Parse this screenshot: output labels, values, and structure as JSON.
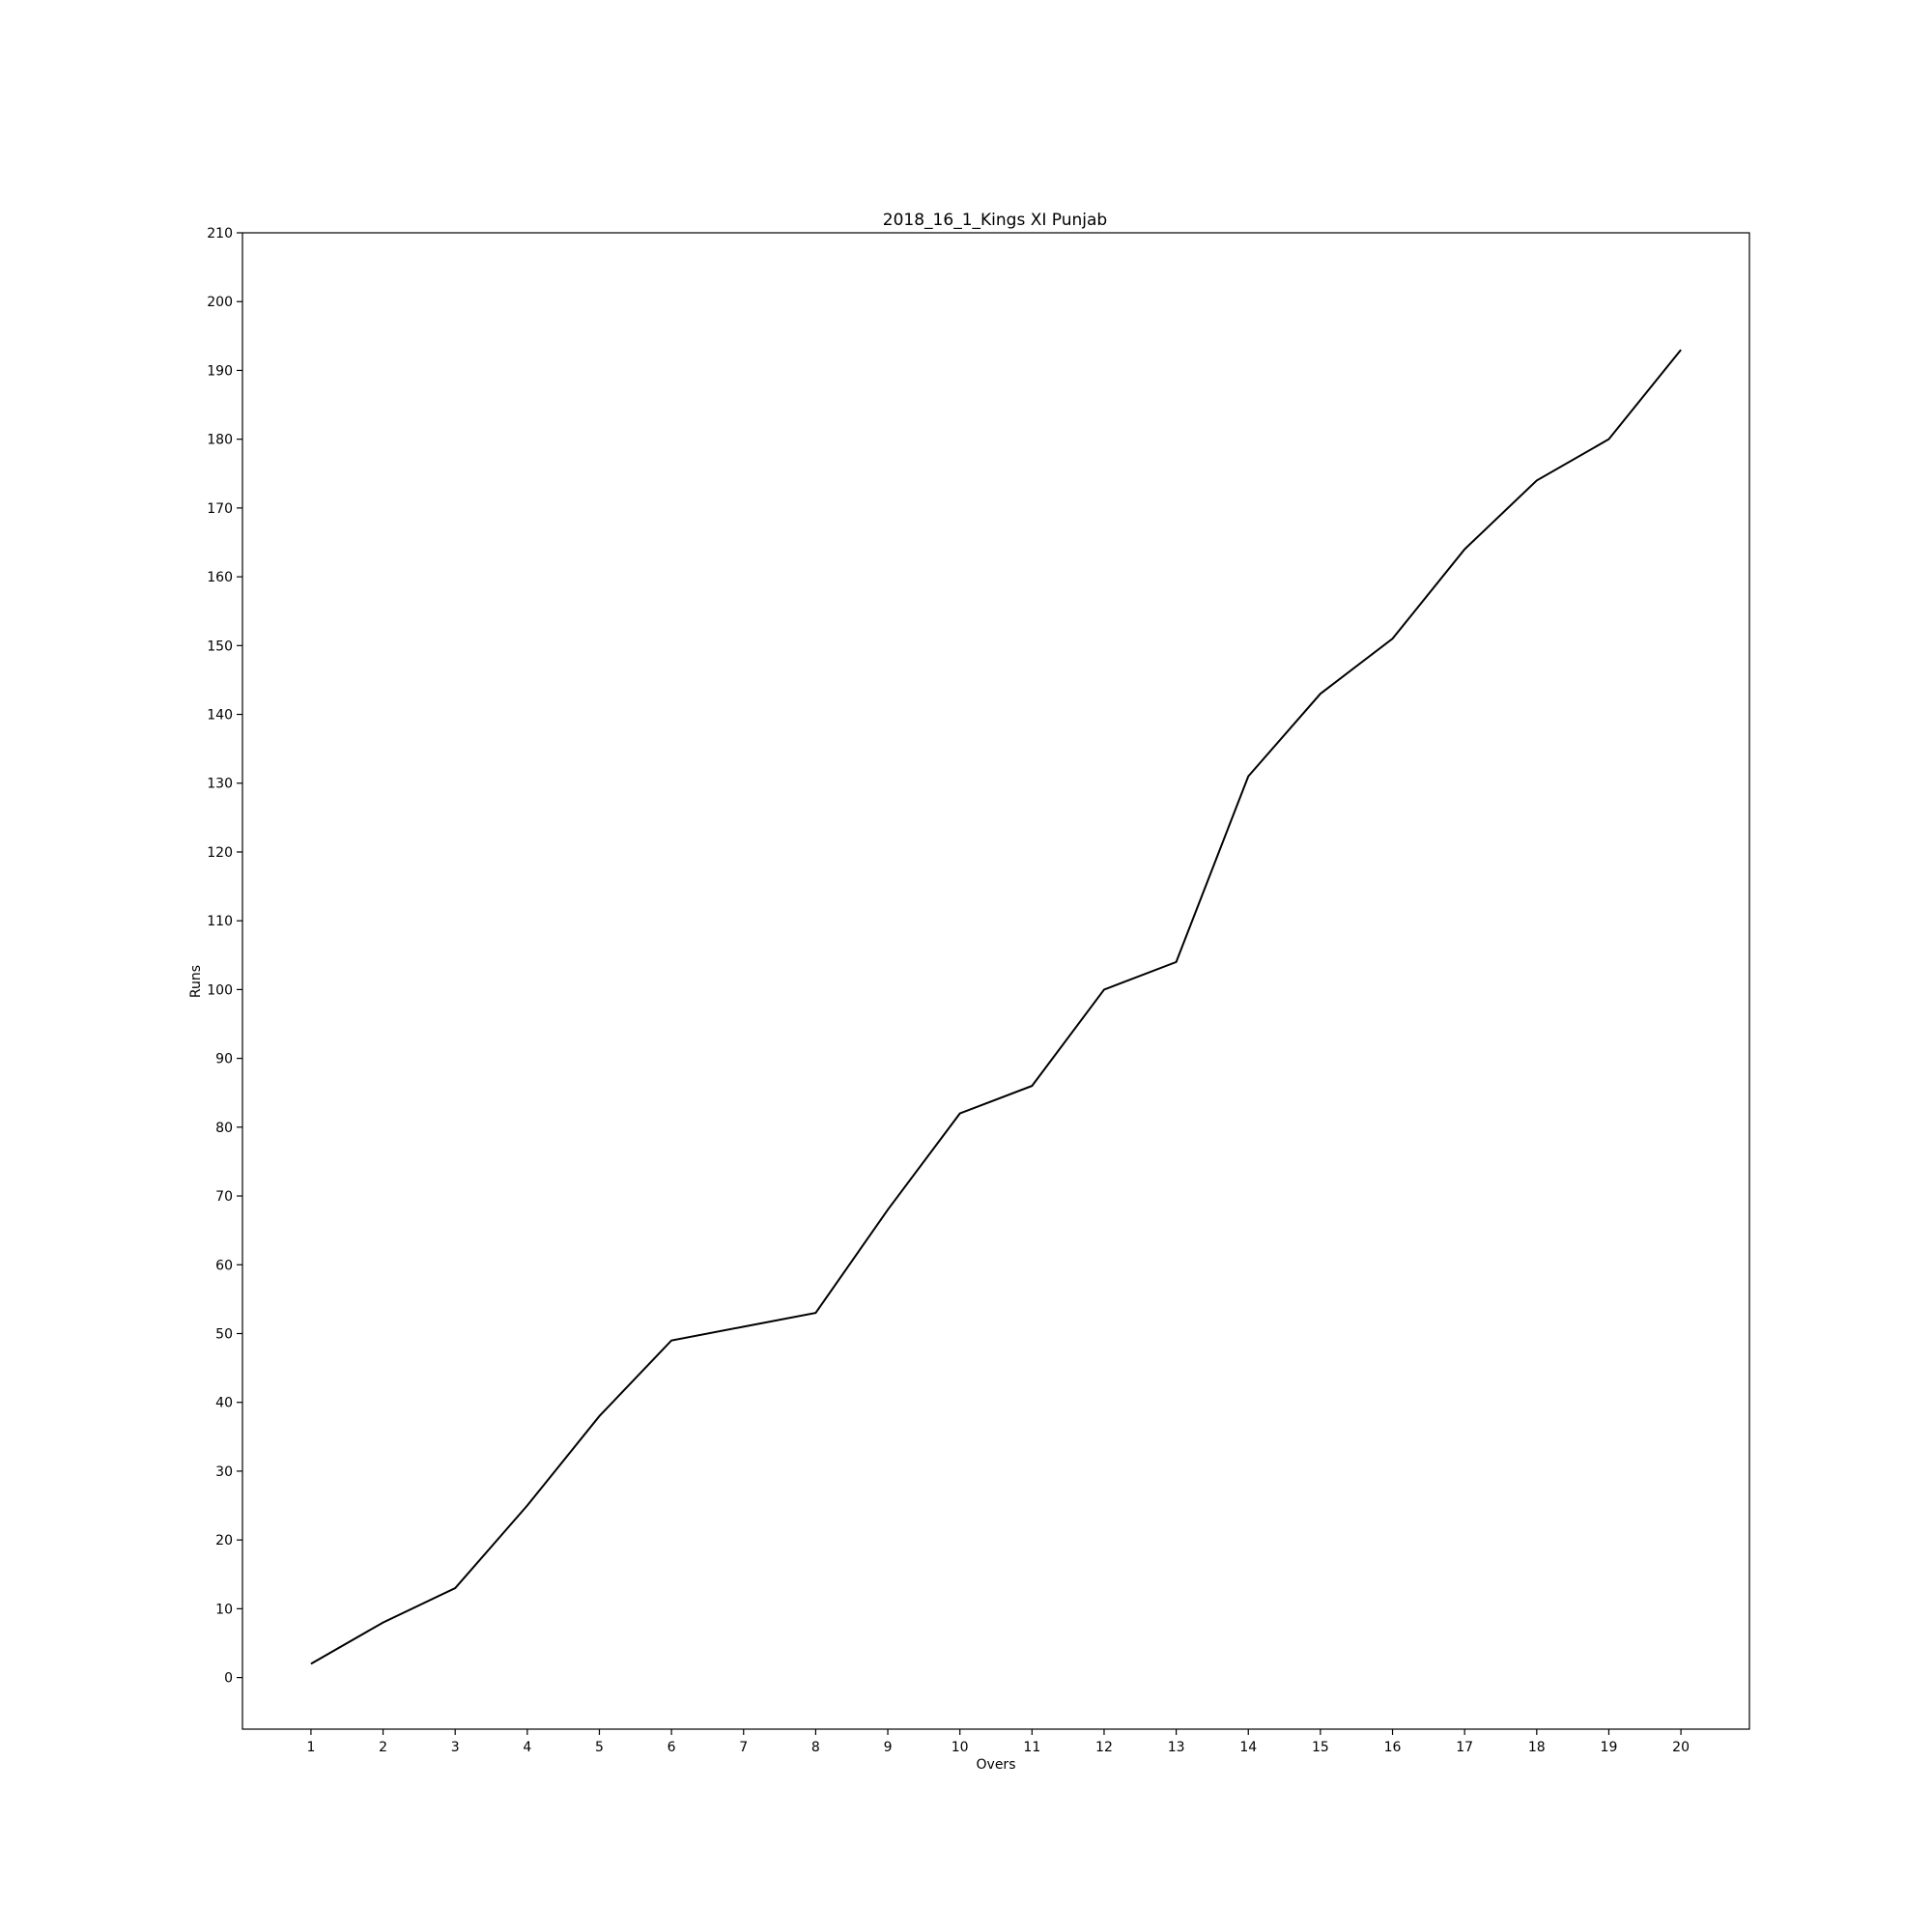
{
  "chart_data": {
    "type": "line",
    "title": "2018_16_1_Kings XI Punjab",
    "xlabel": "Overs",
    "ylabel": "Runs",
    "x": [
      1,
      2,
      3,
      4,
      5,
      6,
      7,
      8,
      9,
      10,
      11,
      12,
      13,
      14,
      15,
      16,
      17,
      18,
      19,
      20
    ],
    "series": [
      {
        "values": [
          2,
          8,
          13,
          25,
          38,
          49,
          51,
          53,
          68,
          82,
          86,
          100,
          104,
          131,
          143,
          151,
          164,
          174,
          180,
          193
        ]
      }
    ],
    "xticks": [
      "1",
      "2",
      "3",
      "4",
      "5",
      "6",
      "7",
      "8",
      "9",
      "10",
      "11",
      "12",
      "13",
      "14",
      "15",
      "16",
      "17",
      "18",
      "19",
      "20"
    ],
    "yticks": [
      "0",
      "10",
      "20",
      "30",
      "40",
      "50",
      "60",
      "70",
      "80",
      "90",
      "100",
      "110",
      "120",
      "130",
      "140",
      "150",
      "160",
      "170",
      "180",
      "190",
      "200",
      "210"
    ],
    "xlim": [
      0.05,
      20.95
    ],
    "ylim": [
      -7.5,
      210
    ],
    "grid": false,
    "line_color": "#000000"
  }
}
